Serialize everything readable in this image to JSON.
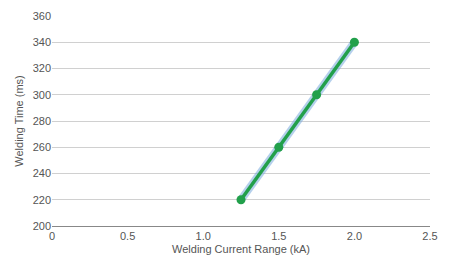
{
  "chart_data": {
    "type": "line",
    "x_label": "Welding Current Range (kA)",
    "y_label": "Welding Time (ms)",
    "x": [
      1.25,
      1.5,
      1.75,
      2.0
    ],
    "values": [
      220,
      260,
      300,
      340
    ],
    "color": "#22a04b",
    "marker": "circle",
    "xlim": [
      0,
      2.5
    ],
    "xticks": [
      0,
      0.5,
      {
        "value": 1,
        "label": "1.0"
      },
      1.5,
      {
        "value": 2,
        "label": "2.0"
      },
      2.5
    ],
    "ylim": [
      200,
      360
    ],
    "yticks": [
      200,
      220,
      240,
      260,
      280,
      300,
      320,
      340,
      360
    ],
    "grid": "y"
  }
}
